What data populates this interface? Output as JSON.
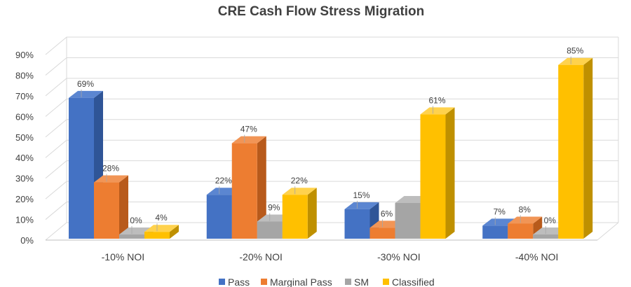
{
  "chart_data": {
    "type": "bar",
    "title": "CRE Cash Flow Stress Migration",
    "categories": [
      "-10% NOI",
      "-20% NOI",
      "-30% NOI",
      "-40% NOI"
    ],
    "series": [
      {
        "name": "Pass",
        "values": [
          69,
          22,
          15,
          7
        ],
        "labels": [
          "69%",
          "22%",
          "15%",
          "7%"
        ],
        "color": "#4472C4",
        "side_color": "#2F5597",
        "top_color": "#5B86D1"
      },
      {
        "name": "Marginal Pass",
        "values": [
          28,
          47,
          6,
          8
        ],
        "labels": [
          "28%",
          "47%",
          "6%",
          "8%"
        ],
        "color": "#ED7D31",
        "side_color": "#B85A1B",
        "top_color": "#F19556"
      },
      {
        "name": "SM",
        "values": [
          0,
          9,
          18,
          0
        ],
        "labels": [
          "0%",
          "9%",
          "",
          "0%"
        ],
        "color": "#A5A5A5",
        "side_color": "#7F7F7F",
        "top_color": "#BDBDBD"
      },
      {
        "name": "Classified",
        "values": [
          4,
          22,
          61,
          85
        ],
        "labels": [
          "4%",
          "22%",
          "61%",
          "85%"
        ],
        "color": "#FFC000",
        "side_color": "#BF9000",
        "top_color": "#FFD24D"
      }
    ],
    "y_ticks": [
      "0%",
      "10%",
      "20%",
      "30%",
      "40%",
      "50%",
      "60%",
      "70%",
      "80%",
      "90%"
    ],
    "ylim": [
      0,
      90
    ],
    "grid": true,
    "legend_position": "bottom",
    "three_d": true
  }
}
